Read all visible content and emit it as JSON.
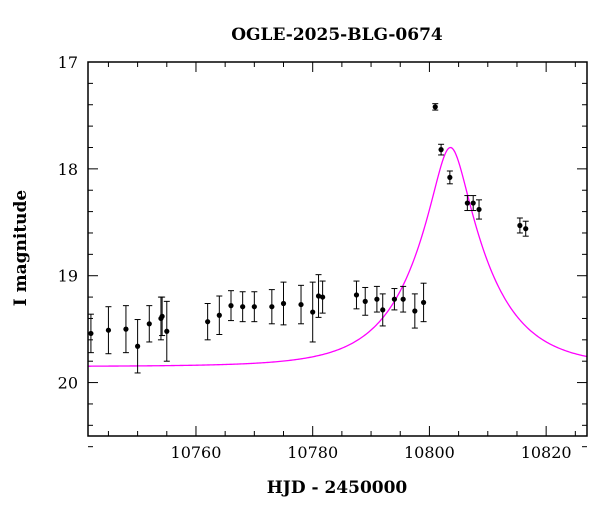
{
  "chart_data": {
    "type": "scatter",
    "title": "OGLE-2025-BLG-0674",
    "xlabel": "HJD - 2450000",
    "ylabel": "I magnitude",
    "xlim": [
      10741.5,
      10827
    ],
    "ylim": [
      17,
      20.5
    ],
    "y_inverted": true,
    "x_major_ticks": [
      10760,
      10780,
      10800,
      10820
    ],
    "x_minor_step": 5,
    "y_major_ticks": [
      17,
      18,
      19,
      20
    ],
    "y_minor_step": 0.2,
    "colors": {
      "points": "#000000",
      "model": "#ff00ff",
      "axes": "#000000"
    },
    "series": [
      {
        "kind": "points_with_errorbars",
        "x": [
          10742,
          10745,
          10748,
          10750,
          10752,
          10754,
          10754.2,
          10755,
          10762,
          10764,
          10766,
          10768,
          10770,
          10773,
          10775,
          10778,
          10780,
          10781,
          10781.7,
          10787.5,
          10789,
          10791,
          10792,
          10794,
          10795.5,
          10797.5,
          10799,
          10801,
          10802,
          10803.5,
          10806.5,
          10807.5,
          10808.5,
          10815.5,
          10816.5
        ],
        "y": [
          19.54,
          19.51,
          19.5,
          19.66,
          19.45,
          19.4,
          19.38,
          19.52,
          19.43,
          19.37,
          19.28,
          19.29,
          19.29,
          19.29,
          19.26,
          19.27,
          19.34,
          19.19,
          19.2,
          19.18,
          19.24,
          19.22,
          19.32,
          19.22,
          19.22,
          19.33,
          19.25,
          17.42,
          17.82,
          18.08,
          18.32,
          18.32,
          18.38,
          18.53,
          18.56
        ],
        "err": [
          0.18,
          0.22,
          0.22,
          0.25,
          0.17,
          0.2,
          0.18,
          0.28,
          0.17,
          0.18,
          0.14,
          0.14,
          0.14,
          0.16,
          0.2,
          0.18,
          0.28,
          0.2,
          0.15,
          0.13,
          0.13,
          0.12,
          0.15,
          0.1,
          0.12,
          0.16,
          0.18,
          0.03,
          0.05,
          0.06,
          0.07,
          0.07,
          0.09,
          0.07,
          0.07
        ]
      },
      {
        "kind": "model_curve",
        "model": "point-lens",
        "t0": 10803.6,
        "tE": 11,
        "u0": 0.25,
        "baseline_mag": 19.85,
        "peak_mag": 17.8
      }
    ]
  }
}
